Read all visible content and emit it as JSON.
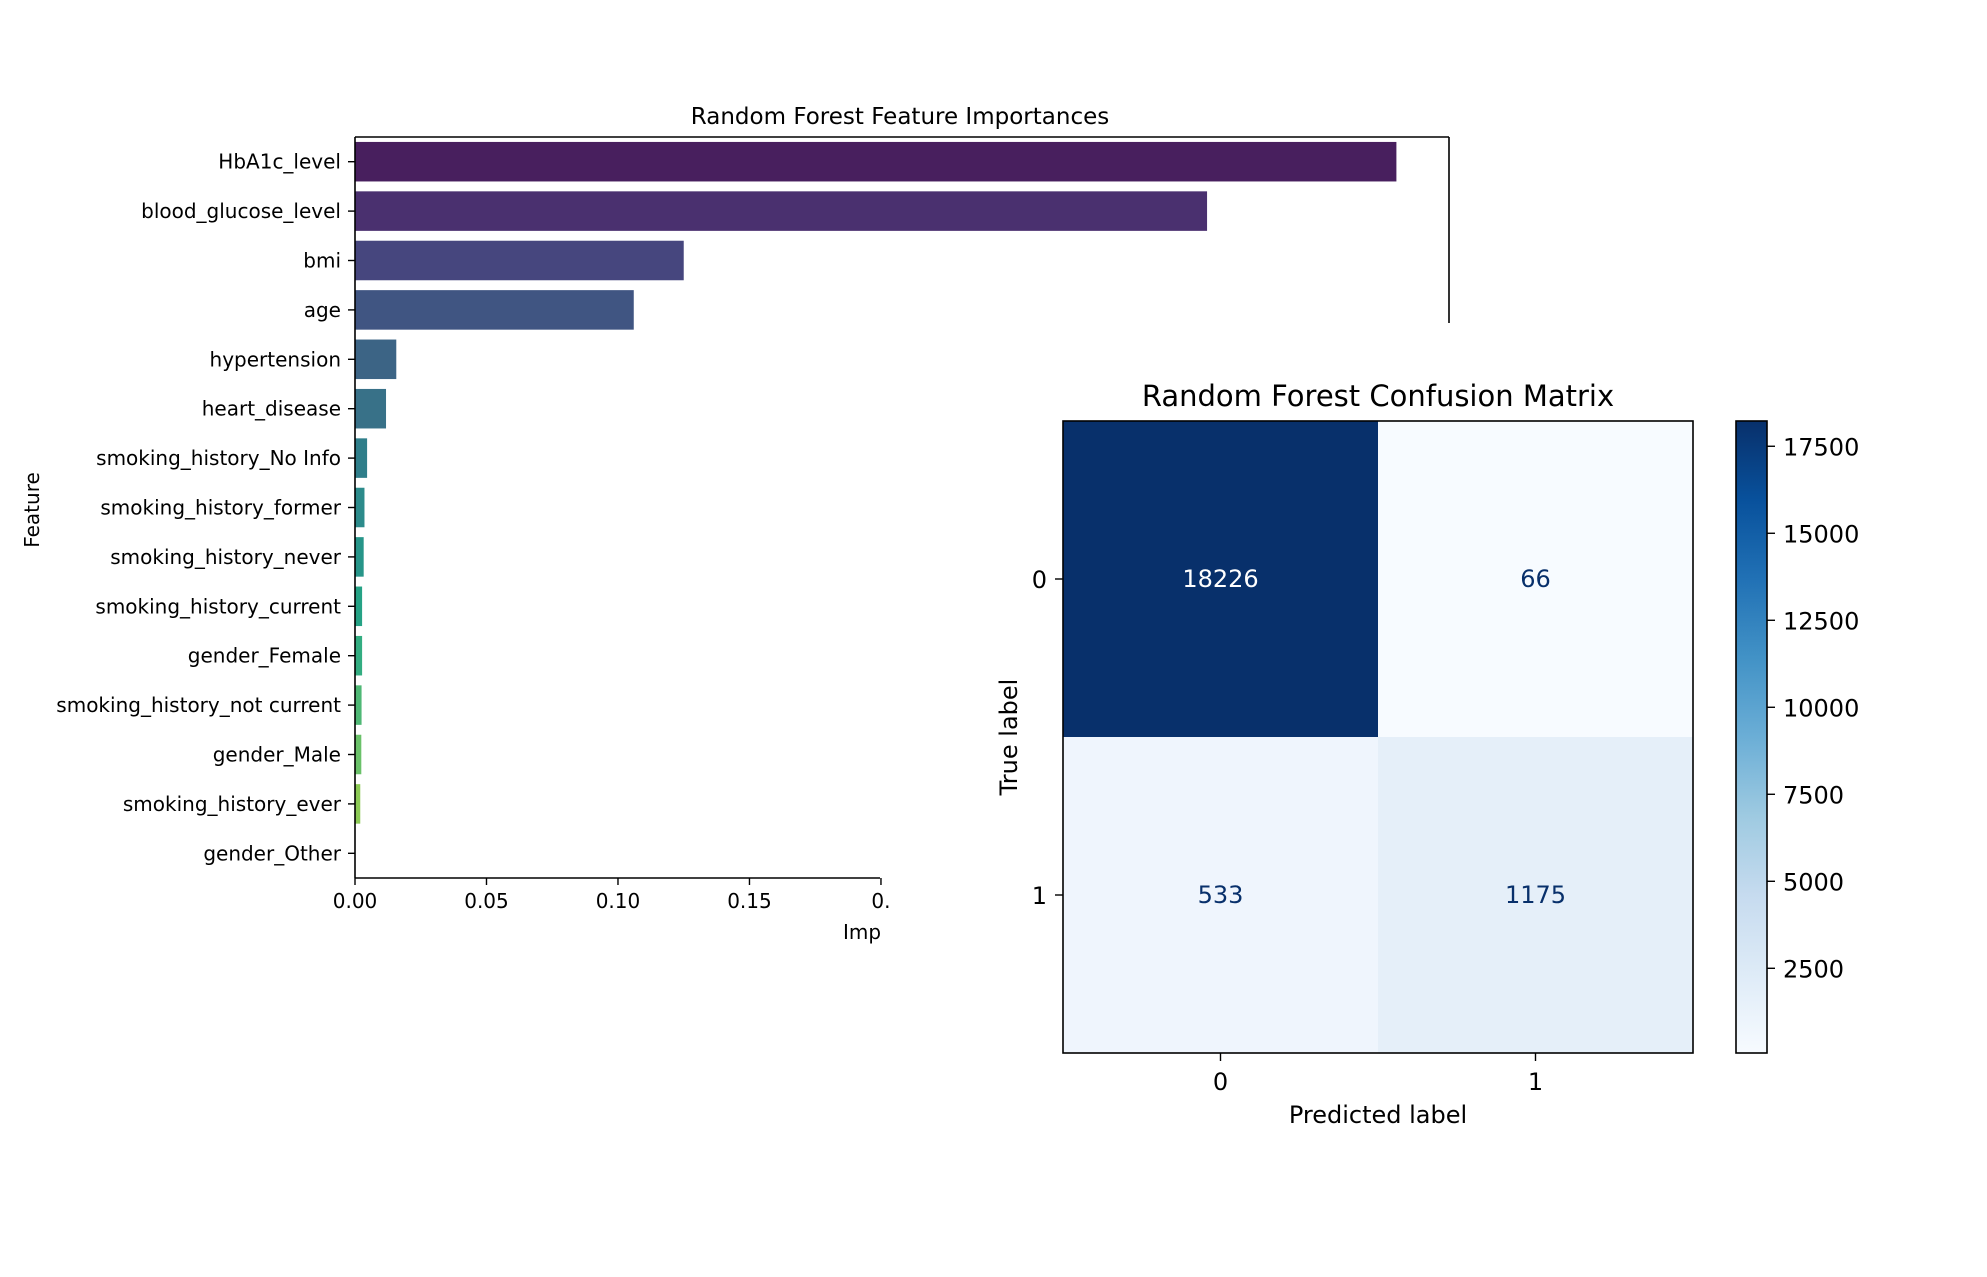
{
  "chart_data": [
    {
      "type": "bar",
      "orientation": "horizontal",
      "title": "Random Forest Feature Importances",
      "xlabel": "Imp",
      "ylabel": "Feature",
      "categories": [
        "HbA1c_level",
        "blood_glucose_level",
        "bmi",
        "age",
        "hypertension",
        "heart_disease",
        "smoking_history_No Info",
        "smoking_history_former",
        "smoking_history_never",
        "smoking_history_current",
        "gender_Female",
        "smoking_history_not current",
        "gender_Male",
        "smoking_history_ever",
        "gender_Other"
      ],
      "values": [
        0.396,
        0.324,
        0.125,
        0.106,
        0.0157,
        0.0118,
        0.0046,
        0.0036,
        0.0033,
        0.0027,
        0.0027,
        0.0025,
        0.0024,
        0.002,
        0.0001
      ],
      "xticks": [
        "0.00",
        "0.05",
        "0.10",
        "0.15",
        "0."
      ],
      "xtick_values": [
        0,
        0.05,
        0.1,
        0.15,
        0.2
      ],
      "xlim": [
        0,
        0.416
      ],
      "colormap": "viridis",
      "bar_colors": [
        "#481f5e",
        "#4a306f",
        "#46467e",
        "#405582",
        "#3c6485",
        "#387188",
        "#2f7e8a",
        "#2c8b8b",
        "#279589",
        "#25a285",
        "#33ad81",
        "#4fb875",
        "#6ac169",
        "#8cca55",
        "#b0d44a"
      ],
      "grid": false,
      "legend": "none"
    },
    {
      "type": "heatmap",
      "title": "Random Forest Confusion Matrix",
      "xlabel": "Predicted label",
      "ylabel": "True label",
      "x_categories": [
        "0",
        "1"
      ],
      "y_categories": [
        "0",
        "1"
      ],
      "matrix": [
        [
          18226,
          66
        ],
        [
          533,
          1175
        ]
      ],
      "colormap": "Blues",
      "colorbar_ticks": [
        "17500",
        "15000",
        "12500",
        "10000",
        "7500",
        "5000",
        "2500"
      ],
      "colorbar_tick_values": [
        17500,
        15000,
        12500,
        10000,
        7500,
        5000,
        2500
      ],
      "colorbar_range": [
        66,
        18226
      ],
      "cell_colors": [
        [
          "#08306b",
          "#f7fbff"
        ],
        [
          "#eff5fd",
          "#e5eff9"
        ]
      ],
      "text_colors": [
        [
          "#ffffff",
          "#08306b"
        ],
        [
          "#08306b",
          "#08306b"
        ]
      ]
    }
  ]
}
